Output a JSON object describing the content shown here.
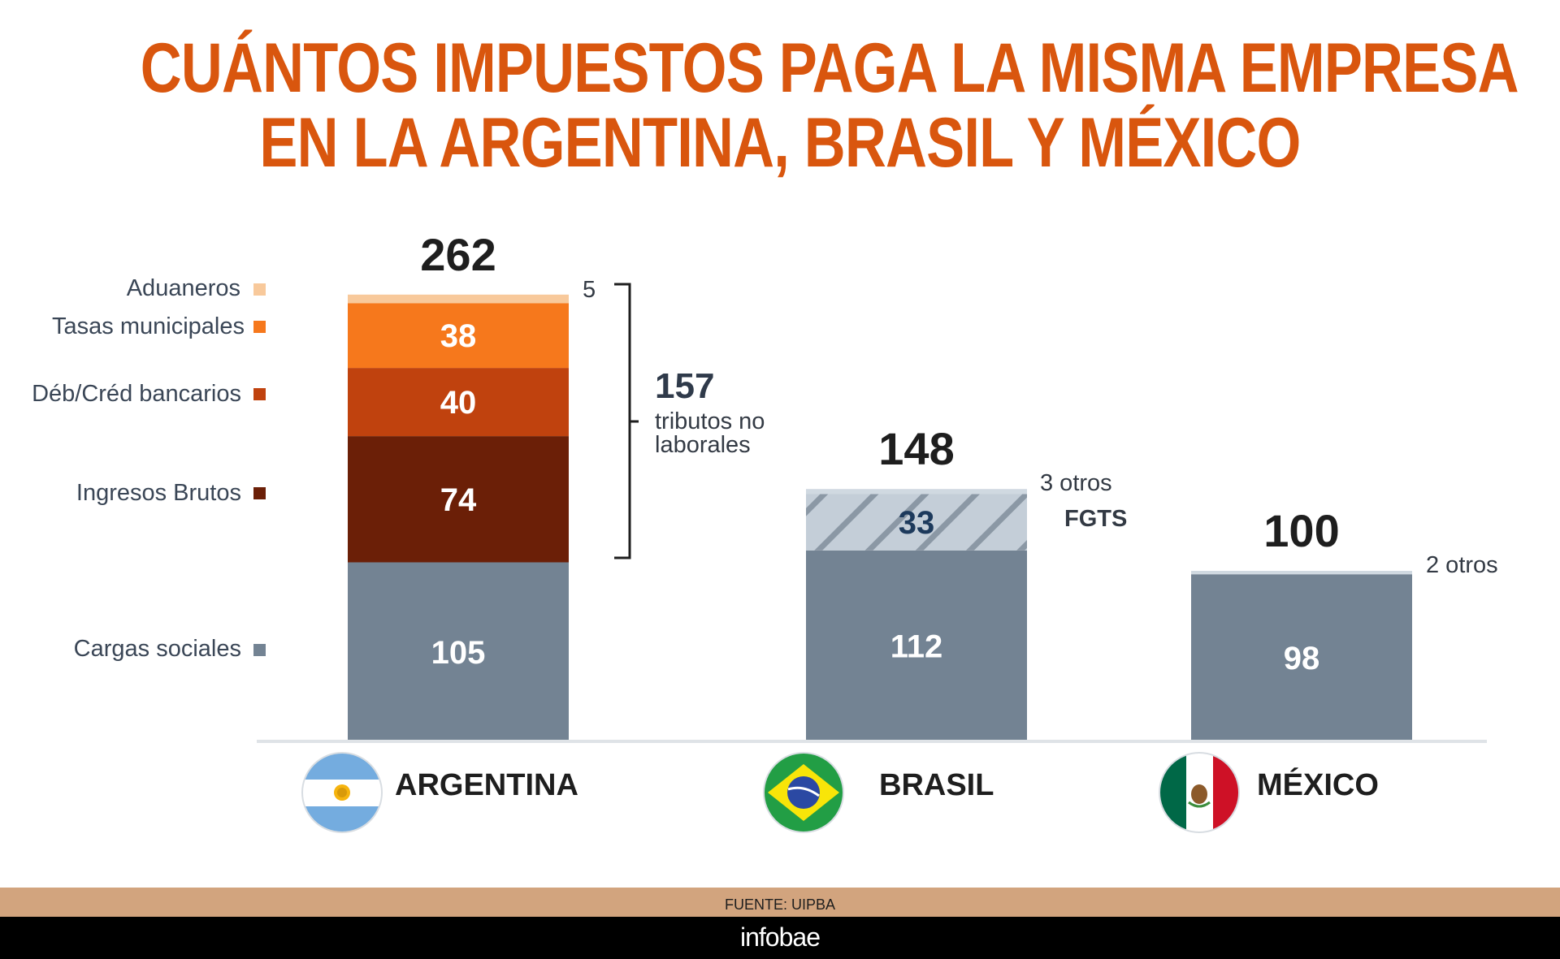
{
  "title": {
    "line1": "CUÁNTOS IMPUESTOS PAGA LA MISMA EMPRESA",
    "line2": "EN LA ARGENTINA, BRASIL Y MÉXICO"
  },
  "chart_data": {
    "type": "bar",
    "stacked": true,
    "categories": [
      "ARGENTINA",
      "BRASIL",
      "MÉXICO"
    ],
    "series": [
      {
        "name": "Cargas sociales",
        "values": [
          105,
          112,
          98
        ],
        "color": "#738393"
      },
      {
        "name": "Ingresos Brutos",
        "values": [
          74,
          0,
          0
        ],
        "color": "#6b1f07"
      },
      {
        "name": "Déb/Créd bancarios",
        "values": [
          40,
          0,
          0
        ],
        "color": "#c0420e"
      },
      {
        "name": "Tasas municipales",
        "values": [
          38,
          0,
          0
        ],
        "color": "#f6781c"
      },
      {
        "name": "Aduaneros",
        "values": [
          5,
          0,
          0
        ],
        "color": "#f8c99b"
      },
      {
        "name": "FGTS",
        "values": [
          0,
          33,
          0
        ],
        "color": "#c4ced8"
      },
      {
        "name": "otros",
        "values": [
          0,
          3,
          2
        ],
        "color": "#d0d9e1"
      }
    ],
    "totals": [
      262,
      148,
      100
    ],
    "segment_labels": {
      "argentina": [
        "105",
        "74",
        "40",
        "38",
        "5"
      ],
      "brasil": [
        "112",
        "33"
      ],
      "mexico": [
        "98"
      ]
    },
    "annotations": {
      "bracket_value": "157",
      "bracket_text_line1": "tributos no",
      "bracket_text_line2": "laborales",
      "brasil_otros": "3 otros",
      "brasil_fgts": "FGTS",
      "mexico_otros": "2 otros"
    },
    "legend": [
      "Aduaneros",
      "Tasas municipales",
      "Déb/Créd bancarios",
      "Ingresos Brutos",
      "Cargas sociales"
    ],
    "xlabel": "",
    "ylabel": "",
    "grid": false,
    "legend_placement": "left"
  },
  "countries": {
    "argentina": {
      "label": "ARGENTINA",
      "flag_icon": "argentina-flag-icon"
    },
    "brasil": {
      "label": "BRASIL",
      "flag_icon": "brazil-flag-icon"
    },
    "mexico": {
      "label": "MÉXICO",
      "flag_icon": "mexico-flag-icon"
    }
  },
  "footer": {
    "source": "FUENTE: UIPBA",
    "brand": "infobae"
  },
  "colors": {
    "title": "#d9560e",
    "source_bar": "#d2a47e",
    "brand_bar": "#000000"
  }
}
